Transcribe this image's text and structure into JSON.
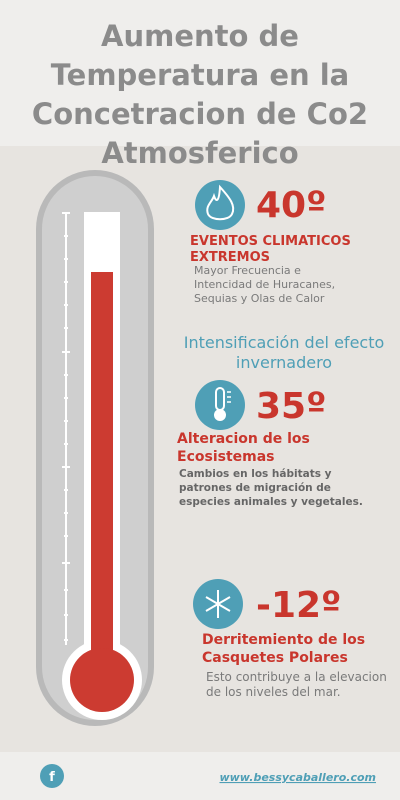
{
  "header": {
    "title_lines": [
      "Aumento de",
      "Temperatura en la",
      "Concetracion de Co2",
      "Atmosferico"
    ]
  },
  "sections": [
    {
      "value": "40º",
      "heading_lines": [
        "EVENTOS CLIMATICOS",
        "EXTREMOS"
      ],
      "description_lines": [
        "Mayor Frecuencia e",
        "Intencidad de Huracanes,",
        "Sequias y Olas de Calor"
      ]
    },
    {
      "value": "35º",
      "heading_lines": [
        "Alteracion de los",
        "Ecosistemas"
      ],
      "description_lines": [
        "Cambios en los hábitats y",
        "patrones de migración de",
        "especies animales y vegetales."
      ]
    },
    {
      "value": "-12º",
      "heading_lines": [
        "Derritemiento de los",
        "Casquetes Polares"
      ],
      "description_lines": [
        "Esto contribuye a la elevacion",
        "de los niveles del mar."
      ]
    }
  ],
  "middle_text_lines": [
    "Intensificación del efecto",
    "invernadero"
  ],
  "footer": {
    "icon": "f",
    "link": "www.bessycaballero.com"
  }
}
